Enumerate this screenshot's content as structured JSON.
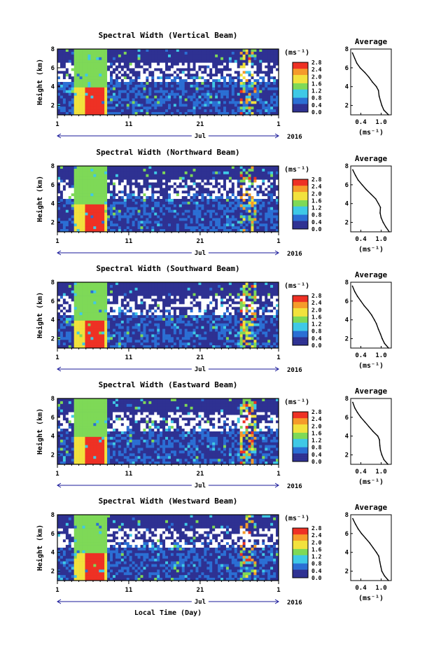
{
  "figure": {
    "xlabel": "Local Time (Day)",
    "xtick_labels": [
      "1",
      "11",
      "21",
      "1"
    ],
    "month_label": "Jul",
    "year_label": "2016",
    "ylabel": "Height (km)",
    "ytick_labels": [
      "2",
      "4",
      "6",
      "8"
    ],
    "colorbar_unit": "(ms⁻¹)",
    "profile_title": "Average",
    "profile_xlabel": "(ms⁻¹)",
    "profile_xtick_labels": [
      "0.4",
      "1.0"
    ]
  },
  "colors": {
    "low": "#2e3192",
    "blue": "#2b6fd4",
    "cyan": "#3fc9e6",
    "green": "#7ed957",
    "yellow": "#f2e23c",
    "orange": "#f59b2a",
    "red": "#ee3124"
  },
  "chart_data": [
    {
      "type": "heatmap",
      "title": "Spectral Width (Vertical Beam)",
      "colorbar_ticks": [
        "0.0",
        "0.4",
        "0.8",
        "1.2",
        "1.6",
        "2.0",
        "2.4",
        "2.8"
      ],
      "xlim": [
        1,
        32
      ],
      "ylim": [
        1,
        8
      ],
      "profile": {
        "type": "line",
        "title": "Average",
        "xlim": [
          0.1,
          1.3
        ],
        "ylim": [
          1,
          8
        ],
        "x": [
          1.22,
          1.08,
          1.02,
          0.98,
          0.94,
          0.92,
          0.86,
          0.74,
          0.64,
          0.52,
          0.38,
          0.28,
          0.22,
          0.15
        ],
        "y": [
          1.0,
          1.5,
          2.0,
          2.5,
          3.0,
          3.6,
          4.0,
          4.5,
          5.0,
          5.5,
          6.0,
          6.5,
          7.0,
          7.6
        ]
      }
    },
    {
      "type": "heatmap",
      "title": "Spectral Width (Northward Beam)",
      "colorbar_ticks": [
        "0.0",
        "0.4",
        "0.8",
        "1.2",
        "1.6",
        "2.0",
        "2.4",
        "2.8"
      ],
      "xlim": [
        1,
        32
      ],
      "ylim": [
        1,
        8
      ],
      "profile": {
        "type": "line",
        "title": "Average",
        "xlim": [
          0.1,
          1.3
        ],
        "ylim": [
          1,
          8
        ],
        "x": [
          1.24,
          1.14,
          1.06,
          1.0,
          0.97,
          0.98,
          0.92,
          0.84,
          0.7,
          0.56,
          0.44,
          0.32,
          0.24,
          0.16
        ],
        "y": [
          1.0,
          1.5,
          2.0,
          2.5,
          3.0,
          3.6,
          4.0,
          4.5,
          5.0,
          5.5,
          6.0,
          6.5,
          7.0,
          7.6
        ]
      }
    },
    {
      "type": "heatmap",
      "title": "Spectral Width (Southward Beam)",
      "colorbar_ticks": [
        "0.0",
        "0.4",
        "0.8",
        "1.2",
        "1.6",
        "2.0",
        "2.4",
        "2.8"
      ],
      "xlim": [
        1,
        32
      ],
      "ylim": [
        1,
        8
      ],
      "profile": {
        "type": "line",
        "title": "Average",
        "xlim": [
          0.1,
          1.3
        ],
        "ylim": [
          1,
          8
        ],
        "x": [
          1.22,
          1.1,
          1.03,
          0.98,
          0.92,
          0.86,
          0.8,
          0.72,
          0.62,
          0.5,
          0.4,
          0.3,
          0.22,
          0.15
        ],
        "y": [
          1.0,
          1.5,
          2.0,
          2.5,
          3.0,
          3.6,
          4.0,
          4.5,
          5.0,
          5.5,
          6.0,
          6.5,
          7.0,
          7.6
        ]
      }
    },
    {
      "type": "heatmap",
      "title": "Spectral Width (Eastward Beam)",
      "colorbar_ticks": [
        "0.0",
        "0.4",
        "0.8",
        "1.2",
        "1.6",
        "2.0",
        "2.4",
        "2.8"
      ],
      "xlim": [
        1,
        32
      ],
      "ylim": [
        1,
        8
      ],
      "profile": {
        "type": "line",
        "title": "Average",
        "xlim": [
          0.1,
          1.3
        ],
        "ylim": [
          1,
          8
        ],
        "x": [
          1.2,
          1.08,
          1.02,
          0.98,
          0.96,
          0.95,
          0.9,
          0.76,
          0.64,
          0.52,
          0.4,
          0.3,
          0.22,
          0.16
        ],
        "y": [
          1.0,
          1.5,
          2.0,
          2.5,
          3.0,
          3.6,
          4.0,
          4.5,
          5.0,
          5.5,
          6.0,
          6.5,
          7.0,
          7.6
        ]
      }
    },
    {
      "type": "heatmap",
      "title": "Spectral Width (Westward Beam)",
      "colorbar_ticks": [
        "0.0",
        "0.4",
        "0.8",
        "1.2",
        "1.6",
        "2.0",
        "2.4",
        "2.8"
      ],
      "xlim": [
        1,
        32
      ],
      "ylim": [
        1,
        8
      ],
      "profile": {
        "type": "line",
        "title": "Average",
        "xlim": [
          0.1,
          1.3
        ],
        "ylim": [
          1,
          8
        ],
        "x": [
          1.22,
          1.1,
          1.02,
          0.99,
          0.96,
          0.93,
          0.86,
          0.76,
          0.66,
          0.54,
          0.42,
          0.32,
          0.24,
          0.16
        ],
        "y": [
          1.0,
          1.5,
          2.0,
          2.5,
          3.0,
          3.6,
          4.0,
          4.5,
          5.0,
          5.5,
          6.0,
          6.5,
          7.0,
          7.6
        ]
      }
    }
  ]
}
